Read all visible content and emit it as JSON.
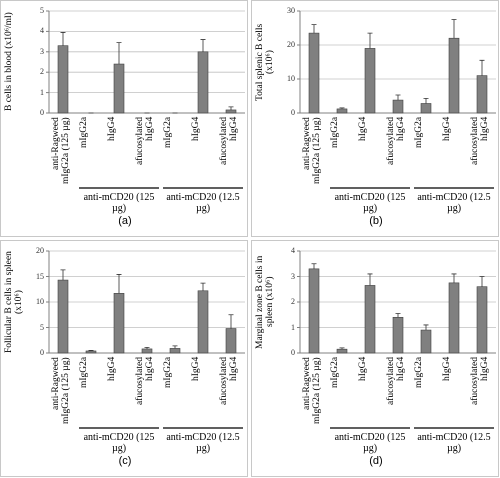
{
  "chart_data": [
    {
      "type": "bar",
      "panel_label": "(a)",
      "y_label": "B cells in blood (x10⁶/ml)",
      "categories": [
        "anti-Ragweed mIgG2a (125 µg)",
        "mIgG2a",
        "hIgG4",
        "afucosylated hIgG4",
        "mIgG2a",
        "hIgG4",
        "afucosylated hIgG4"
      ],
      "group_labels": [
        "anti-mCD20 (125 µg)",
        "anti-mCD20 (12.5 µg)"
      ],
      "values": [
        3.3,
        0,
        2.4,
        0,
        0,
        3.0,
        0.15
      ],
      "errors": [
        0.65,
        0,
        1.05,
        0,
        0,
        0.6,
        0.15
      ],
      "color": "#808080",
      "ylim": [
        0,
        5
      ],
      "yticks": [
        0,
        1,
        2,
        3,
        4,
        5
      ],
      "grid": true
    },
    {
      "type": "bar",
      "panel_label": "(b)",
      "y_label": "Total splenic B cells (x10⁶)",
      "categories": [
        "anti-Ragweed mIgG2a (125 µg)",
        "mIgG2a",
        "hIgG4",
        "afucosylated hIgG4",
        "mIgG2a",
        "hIgG4",
        "afucosylated hIgG4"
      ],
      "group_labels": [
        "anti-mCD20 (125 µg)",
        "anti-mCD20 (12.5 µg)"
      ],
      "values": [
        23.5,
        1.2,
        19,
        3.8,
        2.8,
        22,
        11
      ],
      "errors": [
        2.5,
        0.3,
        4.5,
        1.5,
        1.5,
        5.5,
        4.5
      ],
      "color": "#808080",
      "ylim": [
        0,
        30
      ],
      "yticks": [
        0,
        10,
        20,
        30
      ],
      "grid": true
    },
    {
      "type": "bar",
      "panel_label": "(c)",
      "y_label": "Follicular B cells in spleen (x10⁶)",
      "categories": [
        "anti-Ragweed mIgG2a (125 µg)",
        "mIgG2a",
        "hIgG4",
        "afucosylated hIgG4",
        "mIgG2a",
        "hIgG4",
        "afucosylated hIgG4"
      ],
      "group_labels": [
        "anti-mCD20 (125 µg)",
        "anti-mCD20 (12.5 µg)"
      ],
      "values": [
        14.3,
        0.4,
        11.7,
        0.8,
        0.9,
        12.2,
        4.8
      ],
      "errors": [
        2,
        0.1,
        3.7,
        0.3,
        0.5,
        1.5,
        2.7
      ],
      "color": "#808080",
      "ylim": [
        0,
        20
      ],
      "yticks": [
        0,
        5,
        10,
        15,
        20
      ],
      "grid": true
    },
    {
      "type": "bar",
      "panel_label": "(d)",
      "y_label": "Marginal zone B cells in spleen (x10⁶)",
      "categories": [
        "anti-Ragweed mIgG2a (125 µg)",
        "mIgG2a",
        "hIgG4",
        "afucosylated hIgG4",
        "mIgG2a",
        "hIgG4",
        "afucosylated hIgG4"
      ],
      "group_labels": [
        "anti-mCD20 (125 µg)",
        "anti-mCD20 (12.5 µg)"
      ],
      "values": [
        3.3,
        0.15,
        2.65,
        1.4,
        0.9,
        2.75,
        2.6
      ],
      "errors": [
        0.2,
        0.05,
        0.45,
        0.15,
        0.2,
        0.35,
        0.4
      ],
      "color": "#808080",
      "ylim": [
        0,
        4
      ],
      "yticks": [
        0,
        1,
        2,
        3,
        4
      ],
      "grid": true
    }
  ]
}
